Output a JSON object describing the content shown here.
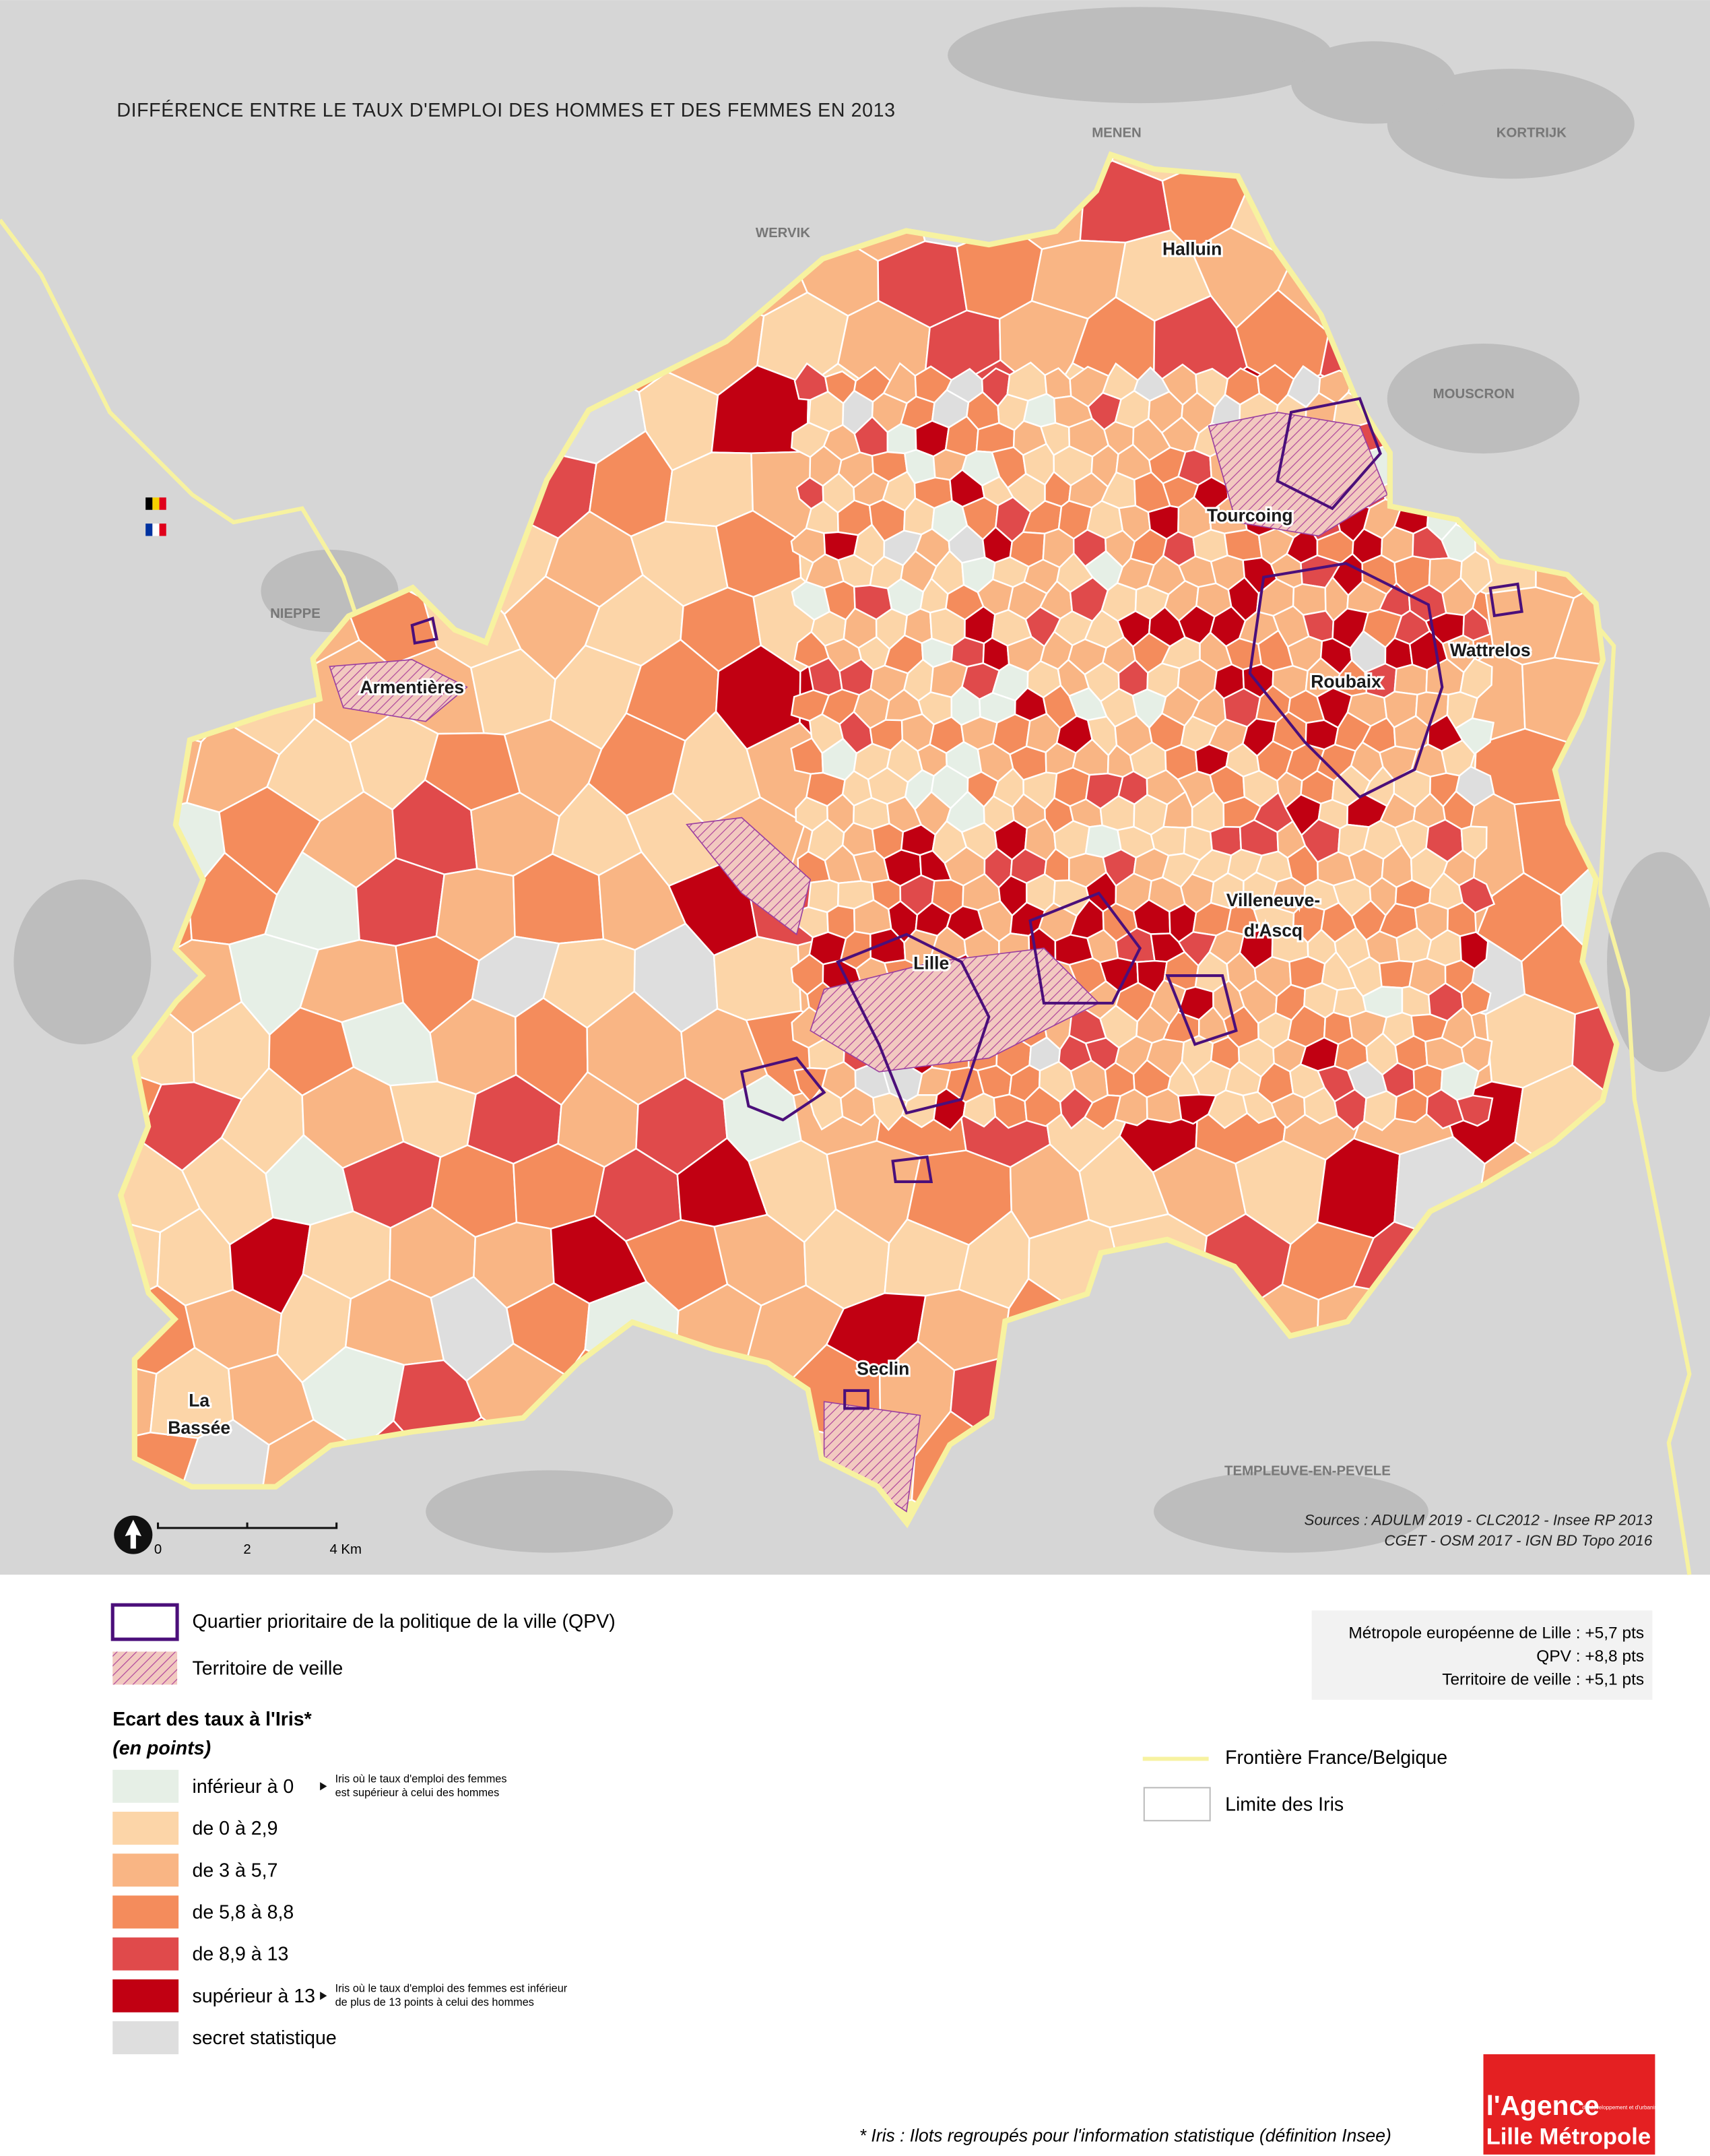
{
  "title": "DIFFÉRENCE ENTRE LE TAUX D'EMPLOI DES HOMMES ET DES FEMMES EN 2013",
  "places": [
    "MENEN",
    "KORTRIJK",
    "WERVIK",
    "MOUSCRON",
    "NIEPPE",
    "TEMPLEUVE-EN-PEVELE"
  ],
  "cities": [
    "Halluin",
    "Tourcoing",
    "Wattrelos",
    "Roubaix",
    "Armentières",
    "Villeneuve-",
    "d'Ascq",
    "Lille",
    "Seclin",
    "La",
    "Bassée"
  ],
  "scale": [
    "0",
    "2",
    "4 Km"
  ],
  "sources": [
    "Sources : ADULM 2019 - CLC2012 - Insee RP 2013",
    "CGET - OSM 2017 - IGN BD Topo 2016"
  ],
  "legend": {
    "qpv": "Quartier prioritaire de la politique de la ville (QPV)",
    "veille": "Territoire de veille",
    "heading": "Ecart des taux à l'Iris*",
    "unit": "(en points)",
    "classes": [
      {
        "label": "inférieur à 0",
        "color": "#e6efe6",
        "note": [
          "Iris où le taux d'emploi des femmes",
          "est supérieur à celui des hommes"
        ]
      },
      {
        "label": "de 0 à 2,9",
        "color": "#fcd5a8"
      },
      {
        "label": "de 3 à 5,7",
        "color": "#f9b584"
      },
      {
        "label": "de 5,8 à 8,8",
        "color": "#f48c5c"
      },
      {
        "label": "de 8,9 à 13",
        "color": "#e04a4b"
      },
      {
        "label": "supérieur à 13",
        "color": "#c10012",
        "note": [
          "Iris où le taux d'emploi des femmes est inférieur",
          "de plus de 13 points à celui des hommes"
        ]
      },
      {
        "label": "secret statistique",
        "color": "#dedede"
      }
    ],
    "border": "Frontière France/Belgique",
    "iris": "Limite des Iris"
  },
  "stats": [
    "Métropole européenne de Lille : +5,7 pts",
    "QPV : +8,8 pts",
    "Territoire de veille : +5,1 pts"
  ],
  "footnote": "* Iris : Ilots regroupés pour l'information statistique (définition Insee)",
  "logo": [
    "l'Agence",
    "de développement et d'urbanisme de",
    "Lille Métropole"
  ]
}
